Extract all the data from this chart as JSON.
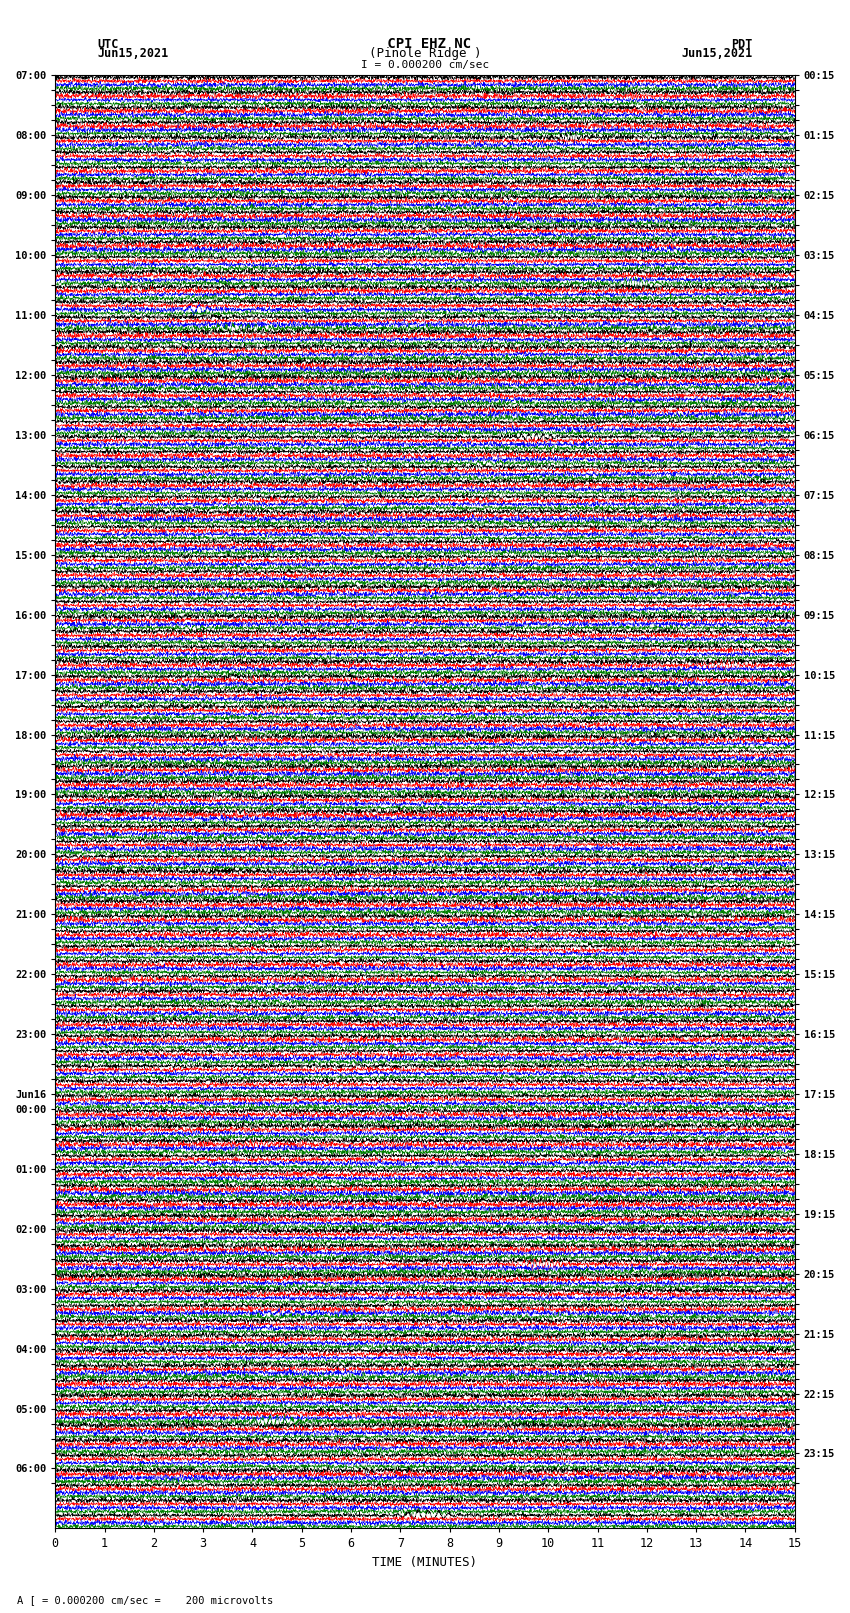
{
  "title_line1": " CPI EHZ NC",
  "title_line2": "(Pinole Ridge )",
  "scale_text": "I = 0.000200 cm/sec",
  "left_label_line1": "UTC",
  "left_label_line2": "Jun15,2021",
  "right_label_line1": "PDT",
  "right_label_line2": "Jun15,2021",
  "bottom_label": "TIME (MINUTES)",
  "footnote": "A [ = 0.000200 cm/sec =    200 microvolts",
  "left_times": [
    "07:00",
    "",
    "",
    "",
    "08:00",
    "",
    "",
    "",
    "09:00",
    "",
    "",
    "",
    "10:00",
    "",
    "",
    "",
    "11:00",
    "",
    "",
    "",
    "12:00",
    "",
    "",
    "",
    "13:00",
    "",
    "",
    "",
    "14:00",
    "",
    "",
    "",
    "15:00",
    "",
    "",
    "",
    "16:00",
    "",
    "",
    "",
    "17:00",
    "",
    "",
    "",
    "18:00",
    "",
    "",
    "",
    "19:00",
    "",
    "",
    "",
    "20:00",
    "",
    "",
    "",
    "21:00",
    "",
    "",
    "",
    "22:00",
    "",
    "",
    "",
    "23:00",
    "",
    "",
    "",
    "Jun16",
    "00:00",
    "",
    "",
    "",
    "01:00",
    "",
    "",
    "",
    "02:00",
    "",
    "",
    "",
    "03:00",
    "",
    "",
    "",
    "04:00",
    "",
    "",
    "",
    "05:00",
    "",
    "",
    "",
    "06:00",
    ""
  ],
  "right_times": [
    "00:15",
    "",
    "",
    "",
    "01:15",
    "",
    "",
    "",
    "02:15",
    "",
    "",
    "",
    "03:15",
    "",
    "",
    "",
    "04:15",
    "",
    "",
    "",
    "05:15",
    "",
    "",
    "",
    "06:15",
    "",
    "",
    "",
    "07:15",
    "",
    "",
    "",
    "08:15",
    "",
    "",
    "",
    "09:15",
    "",
    "",
    "",
    "10:15",
    "",
    "",
    "",
    "11:15",
    "",
    "",
    "",
    "12:15",
    "",
    "",
    "",
    "13:15",
    "",
    "",
    "",
    "14:15",
    "",
    "",
    "",
    "15:15",
    "",
    "",
    "",
    "16:15",
    "",
    "",
    "",
    "17:15",
    "",
    "",
    "",
    "18:15",
    "",
    "",
    "",
    "19:15",
    "",
    "",
    "",
    "20:15",
    "",
    "",
    "",
    "21:15",
    "",
    "",
    "",
    "22:15",
    "",
    "",
    "",
    "23:15",
    ""
  ],
  "n_rows": 97,
  "colors": [
    "black",
    "red",
    "blue",
    "green"
  ],
  "x_ticks": [
    0,
    1,
    2,
    3,
    4,
    5,
    6,
    7,
    8,
    9,
    10,
    11,
    12,
    13,
    14,
    15
  ],
  "x_min": 0,
  "x_max": 15,
  "background_color": "white"
}
